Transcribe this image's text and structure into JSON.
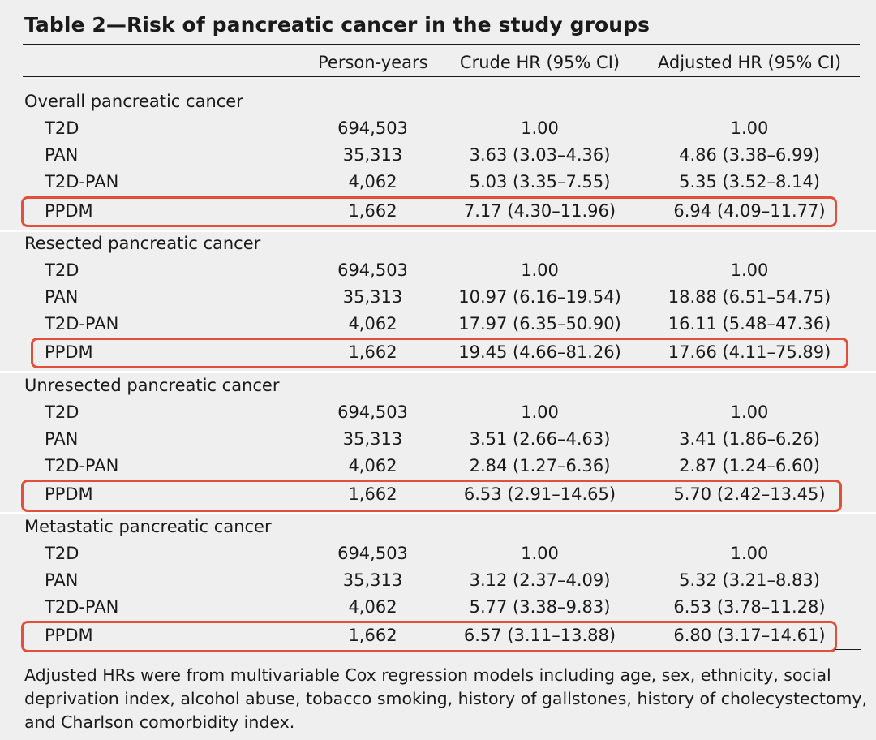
{
  "title": "Table 2—Risk of pancreatic cancer in the study groups",
  "columns": {
    "person_years": "Person-years",
    "crude_hr": "Crude HR (95% CI)",
    "adjusted_hr": "Adjusted HR (95% CI)"
  },
  "sections": [
    {
      "name": "Overall pancreatic cancer",
      "rows": [
        {
          "label": "T2D",
          "person_years": "694,503",
          "crude": "1.00",
          "adjusted": "1.00"
        },
        {
          "label": "PAN",
          "person_years": "35,313",
          "crude": "3.63 (3.03–4.36)",
          "adjusted": "4.86 (3.38–6.99)"
        },
        {
          "label": "T2D-PAN",
          "person_years": "4,062",
          "crude": "5.03 (3.35–7.55)",
          "adjusted": "5.35 (3.52–8.14)"
        },
        {
          "label": "PPDM",
          "person_years": "1,662",
          "crude": "7.17 (4.30–11.96)",
          "adjusted": "6.94 (4.09–11.77)"
        }
      ]
    },
    {
      "name": "Resected pancreatic cancer",
      "rows": [
        {
          "label": "T2D",
          "person_years": "694,503",
          "crude": "1.00",
          "adjusted": "1.00"
        },
        {
          "label": "PAN",
          "person_years": "35,313",
          "crude": "10.97 (6.16–19.54)",
          "adjusted": "18.88 (6.51–54.75)"
        },
        {
          "label": "T2D-PAN",
          "person_years": "4,062",
          "crude": "17.97 (6.35–50.90)",
          "adjusted": "16.11 (5.48–47.36)"
        },
        {
          "label": "PPDM",
          "person_years": "1,662",
          "crude": "19.45 (4.66–81.26)",
          "adjusted": "17.66 (4.11–75.89)"
        }
      ]
    },
    {
      "name": "Unresected pancreatic cancer",
      "rows": [
        {
          "label": "T2D",
          "person_years": "694,503",
          "crude": "1.00",
          "adjusted": "1.00"
        },
        {
          "label": "PAN",
          "person_years": "35,313",
          "crude": "3.51 (2.66–4.63)",
          "adjusted": "3.41 (1.86–6.26)"
        },
        {
          "label": "T2D-PAN",
          "person_years": "4,062",
          "crude": "2.84 (1.27–6.36)",
          "adjusted": "2.87 (1.24–6.60)"
        },
        {
          "label": "PPDM",
          "person_years": "1,662",
          "crude": "6.53 (2.91–14.65)",
          "adjusted": "5.70 (2.42–13.45)"
        }
      ]
    },
    {
      "name": "Metastatic pancreatic cancer",
      "rows": [
        {
          "label": "T2D",
          "person_years": "694,503",
          "crude": "1.00",
          "adjusted": "1.00"
        },
        {
          "label": "PAN",
          "person_years": "35,313",
          "crude": "3.12 (2.37–4.09)",
          "adjusted": "5.32 (3.21–8.83)"
        },
        {
          "label": "T2D-PAN",
          "person_years": "4,062",
          "crude": "5.77 (3.38–9.83)",
          "adjusted": "6.53 (3.78–11.28)"
        },
        {
          "label": "PPDM",
          "person_years": "1,662",
          "crude": "6.57 (3.11–13.88)",
          "adjusted": "6.80 (3.17–14.61)"
        }
      ]
    }
  ],
  "footnote": "Adjusted HRs were from multivariable Cox regression models including age, sex, ethnicity, social deprivation index, alcohol abuse, tobacco smoking, history of gallstones, history of cholecystectomy, and Charlson comorbidity index.",
  "colors": {
    "highlight": "#e0503a",
    "background": "#efeff0",
    "separator": "#ffffff"
  }
}
